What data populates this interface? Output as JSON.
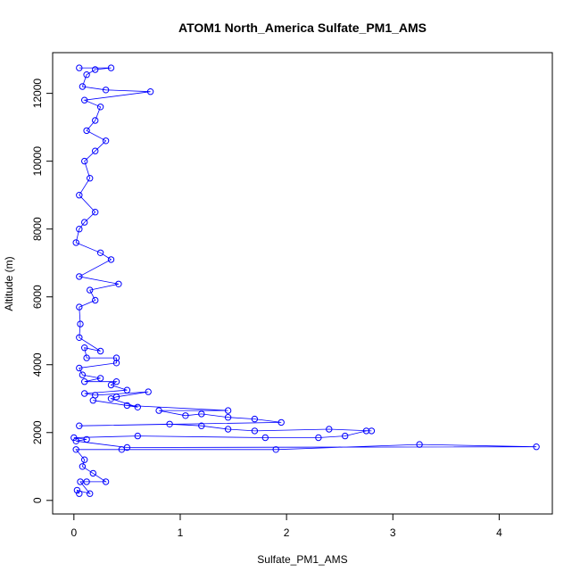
{
  "chart_data": {
    "type": "scatter",
    "title": "ATOM1 North_America Sulfate_PM1_AMS",
    "xlabel": "Sulfate_PM1_AMS",
    "ylabel": "Altitude (m)",
    "xlim": [
      -0.2,
      4.5
    ],
    "ylim": [
      -400,
      13200
    ],
    "x_ticks": [
      0,
      1,
      2,
      3,
      4
    ],
    "y_ticks": [
      0,
      2000,
      4000,
      6000,
      8000,
      10000,
      12000
    ],
    "marker": "open-circle",
    "connect_points": true,
    "series": [
      {
        "color": "#0000ff",
        "points": [
          [
            0.05,
            200
          ],
          [
            0.03,
            300
          ],
          [
            0.15,
            200
          ],
          [
            0.06,
            550
          ],
          [
            0.12,
            550
          ],
          [
            0.3,
            550
          ],
          [
            0.18,
            800
          ],
          [
            0.08,
            1000
          ],
          [
            0.1,
            1200
          ],
          [
            0.02,
            1500
          ],
          [
            0.45,
            1500
          ],
          [
            1.9,
            1500
          ],
          [
            3.25,
            1650
          ],
          [
            4.35,
            1580
          ],
          [
            0.5,
            1560
          ],
          [
            0.02,
            1750
          ],
          [
            0.12,
            1800
          ],
          [
            0.0,
            1850
          ],
          [
            0.6,
            1900
          ],
          [
            1.8,
            1850
          ],
          [
            2.3,
            1850
          ],
          [
            2.55,
            1900
          ],
          [
            2.75,
            2050
          ],
          [
            2.8,
            2050
          ],
          [
            2.4,
            2100
          ],
          [
            1.7,
            2050
          ],
          [
            1.45,
            2100
          ],
          [
            1.2,
            2200
          ],
          [
            0.9,
            2250
          ],
          [
            0.05,
            2200
          ],
          [
            1.95,
            2300
          ],
          [
            1.7,
            2400
          ],
          [
            1.45,
            2450
          ],
          [
            1.2,
            2550
          ],
          [
            1.05,
            2500
          ],
          [
            0.8,
            2650
          ],
          [
            1.45,
            2650
          ],
          [
            0.5,
            2800
          ],
          [
            0.18,
            2950
          ],
          [
            0.6,
            2750
          ],
          [
            0.35,
            3000
          ],
          [
            0.4,
            3050
          ],
          [
            0.7,
            3200
          ],
          [
            0.2,
            3100
          ],
          [
            0.1,
            3150
          ],
          [
            0.5,
            3250
          ],
          [
            0.35,
            3400
          ],
          [
            0.4,
            3500
          ],
          [
            0.1,
            3500
          ],
          [
            0.25,
            3600
          ],
          [
            0.08,
            3700
          ],
          [
            0.05,
            3900
          ],
          [
            0.4,
            4050
          ],
          [
            0.4,
            4200
          ],
          [
            0.12,
            4200
          ],
          [
            0.1,
            4500
          ],
          [
            0.25,
            4400
          ],
          [
            0.05,
            4800
          ],
          [
            0.06,
            5200
          ],
          [
            0.05,
            5700
          ],
          [
            0.2,
            5900
          ],
          [
            0.15,
            6200
          ],
          [
            0.42,
            6380
          ],
          [
            0.05,
            6600
          ],
          [
            0.35,
            7100
          ],
          [
            0.25,
            7300
          ],
          [
            0.02,
            7600
          ],
          [
            0.05,
            8000
          ],
          [
            0.1,
            8200
          ],
          [
            0.2,
            8500
          ],
          [
            0.05,
            9000
          ],
          [
            0.15,
            9500
          ],
          [
            0.1,
            10000
          ],
          [
            0.2,
            10300
          ],
          [
            0.3,
            10600
          ],
          [
            0.12,
            10900
          ],
          [
            0.2,
            11200
          ],
          [
            0.25,
            11600
          ],
          [
            0.1,
            11800
          ],
          [
            0.72,
            12050
          ],
          [
            0.3,
            12100
          ],
          [
            0.08,
            12200
          ],
          [
            0.12,
            12550
          ],
          [
            0.2,
            12700
          ],
          [
            0.35,
            12750
          ],
          [
            0.05,
            12750
          ]
        ]
      }
    ]
  }
}
